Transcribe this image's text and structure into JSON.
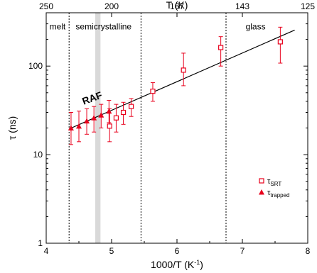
{
  "chart_data": {
    "type": "scatter",
    "xlabel": "1000/T (K",
    "xlabel_sup": "-1",
    "xlabel_close": ")",
    "ylabel": "τ (ns)",
    "top_axis_label": "T (K)",
    "xlim": [
      4,
      8
    ],
    "ylim": [
      1,
      400
    ],
    "yscale": "log",
    "x_ticks": [
      "4",
      "5",
      "6",
      "7",
      "8"
    ],
    "y_ticks": [
      "1",
      "10",
      "100"
    ],
    "top_ticks": [
      "250",
      "200",
      "167",
      "143",
      "125"
    ],
    "top_tick_positions": [
      4,
      5,
      6,
      7,
      8
    ],
    "regions": [
      {
        "label": "melt",
        "x_text": 4.05,
        "y_text": 260
      },
      {
        "label": "semicrystalline",
        "x_text": 4.45,
        "y_text": 260
      },
      {
        "label": "glass",
        "x_text": 7.05,
        "y_text": 260
      }
    ],
    "dashed_lines_x": [
      4.35,
      5.45,
      6.75
    ],
    "shaded_band": {
      "x0": 4.75,
      "x1": 4.83
    },
    "raf_label": {
      "text": "RAF",
      "x": 4.72,
      "y": 40
    },
    "fit_line": {
      "x0": 4.35,
      "y0": 19.5,
      "x1": 7.8,
      "y1": 255
    },
    "series": [
      {
        "name": "τ",
        "name_sub": "SRT",
        "marker": "open-square",
        "color": "#e8001c",
        "points": [
          {
            "x": 4.97,
            "y": 21,
            "lo": 14,
            "hi": 33
          },
          {
            "x": 5.07,
            "y": 26,
            "lo": 18,
            "hi": 37
          },
          {
            "x": 5.18,
            "y": 30,
            "lo": 22,
            "hi": 39
          },
          {
            "x": 5.3,
            "y": 35,
            "lo": 27,
            "hi": 43
          },
          {
            "x": 5.63,
            "y": 52,
            "lo": 40,
            "hi": 65
          },
          {
            "x": 6.1,
            "y": 90,
            "lo": 60,
            "hi": 140
          },
          {
            "x": 6.67,
            "y": 162,
            "lo": 100,
            "hi": 215
          },
          {
            "x": 7.58,
            "y": 188,
            "lo": 108,
            "hi": 275
          }
        ]
      },
      {
        "name": "τ",
        "name_sub": "trapped",
        "marker": "filled-triangle",
        "color": "#e8001c",
        "points": [
          {
            "x": 4.38,
            "y": 20,
            "lo": 13,
            "hi": 30
          },
          {
            "x": 4.5,
            "y": 21,
            "lo": 14,
            "hi": 31
          },
          {
            "x": 4.62,
            "y": 24,
            "lo": 17,
            "hi": 33
          },
          {
            "x": 4.73,
            "y": 26,
            "lo": 18,
            "hi": 35
          },
          {
            "x": 4.84,
            "y": 28,
            "lo": 20,
            "hi": 37
          },
          {
            "x": 4.96,
            "y": 31,
            "lo": 23,
            "hi": 41
          }
        ]
      }
    ],
    "legend": "lower-right",
    "grid": false
  }
}
